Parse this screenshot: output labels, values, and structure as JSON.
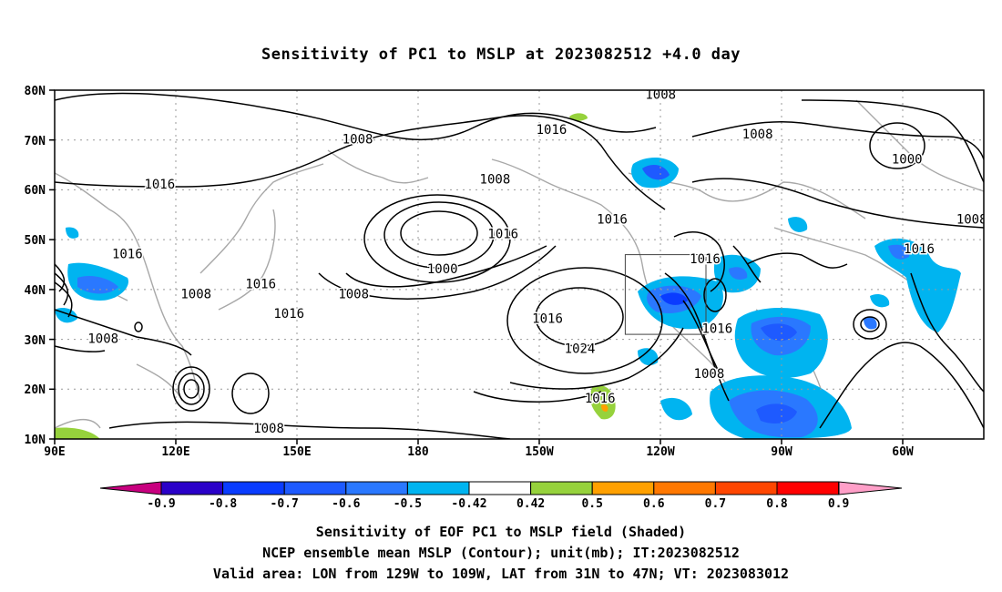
{
  "title": "Sensitivity of PC1 to MSLP at 2023082512 +4.0 day",
  "axes": {
    "lat_labels": [
      "80N",
      "70N",
      "60N",
      "50N",
      "40N",
      "30N",
      "20N",
      "10N"
    ],
    "lon_labels": [
      "90E",
      "120E",
      "150E",
      "180",
      "150W",
      "120W",
      "90W",
      "60W"
    ],
    "lon_range": [
      90,
      320
    ],
    "lat_range": [
      10,
      80
    ],
    "grid": "dotted"
  },
  "valid_box": {
    "lon": [
      -129,
      -109
    ],
    "lat": [
      31,
      47
    ]
  },
  "contour_labels": [
    {
      "text": "1008",
      "lon": 143,
      "lat": 12
    },
    {
      "text": "1008",
      "lon": 102,
      "lat": 30
    },
    {
      "text": "1008",
      "lon": 125,
      "lat": 39
    },
    {
      "text": "1016",
      "lon": 108,
      "lat": 47
    },
    {
      "text": "1016",
      "lon": 116,
      "lat": 61
    },
    {
      "text": "1016",
      "lon": 141,
      "lat": 41
    },
    {
      "text": "1016",
      "lon": 148,
      "lat": 35
    },
    {
      "text": "1008",
      "lon": 164,
      "lat": 39
    },
    {
      "text": "1008",
      "lon": 165,
      "lat": 70
    },
    {
      "text": "1000",
      "lon": 186,
      "lat": 44
    },
    {
      "text": "1008",
      "lon": 199,
      "lat": 62
    },
    {
      "text": "1016",
      "lon": 201,
      "lat": 51
    },
    {
      "text": "1016",
      "lon": 213,
      "lat": 72
    },
    {
      "text": "1016",
      "lon": 212,
      "lat": 34
    },
    {
      "text": "1024",
      "lon": 220,
      "lat": 28
    },
    {
      "text": "1016",
      "lon": 225,
      "lat": 18
    },
    {
      "text": "1016",
      "lon": 228,
      "lat": 54
    },
    {
      "text": "1008",
      "lon": 240,
      "lat": 79
    },
    {
      "text": "1016",
      "lon": 251,
      "lat": 46
    },
    {
      "text": "1016",
      "lon": 254,
      "lat": 32
    },
    {
      "text": "1008",
      "lon": 252,
      "lat": 23
    },
    {
      "text": "1008",
      "lon": 264,
      "lat": 71
    },
    {
      "text": "1000",
      "lon": 301,
      "lat": 66
    },
    {
      "text": "1016",
      "lon": 304,
      "lat": 48
    },
    {
      "text": "1008",
      "lon": 317,
      "lat": 54
    }
  ],
  "colorbar": {
    "labels": [
      "-0.9",
      "-0.8",
      "-0.7",
      "-0.6",
      "-0.5",
      "-0.42",
      "0.42",
      "0.5",
      "0.6",
      "0.7",
      "0.8",
      "0.9"
    ],
    "colors": [
      "#2a00c8",
      "#0a3cff",
      "#1e5aff",
      "#2a78ff",
      "#00b4f0",
      "#ffffff",
      "#96d23c",
      "#ffa000",
      "#ff7800",
      "#ff4600",
      "#ff0000"
    ],
    "low_end": "#c8007f",
    "high_end": "#ff9fc8"
  },
  "captions": {
    "line1": "Sensitivity of EOF PC1 to MSLP field (Shaded)",
    "line2": "NCEP ensemble mean MSLP (Contour); unit(mb); IT:2023082512",
    "line3": "Valid area: LON from 129W to 109W, LAT from 31N to 47N; VT: 2023083012"
  }
}
